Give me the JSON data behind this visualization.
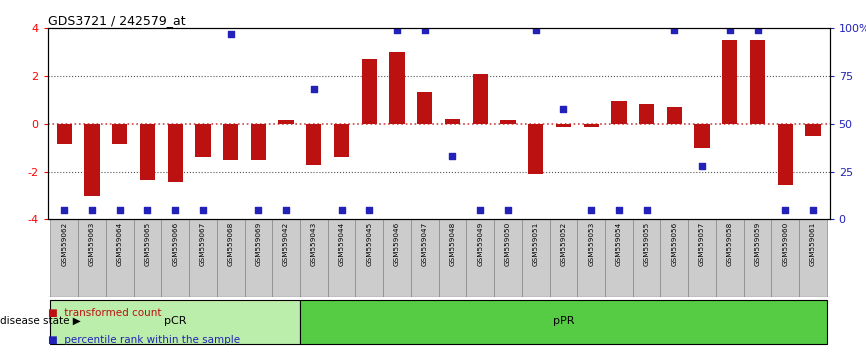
{
  "title": "GDS3721 / 242579_at",
  "samples": [
    "GSM559062",
    "GSM559063",
    "GSM559064",
    "GSM559065",
    "GSM559066",
    "GSM559067",
    "GSM559068",
    "GSM559069",
    "GSM559042",
    "GSM559043",
    "GSM559044",
    "GSM559045",
    "GSM559046",
    "GSM559047",
    "GSM559048",
    "GSM559049",
    "GSM559050",
    "GSM559051",
    "GSM559052",
    "GSM559053",
    "GSM559054",
    "GSM559055",
    "GSM559056",
    "GSM559057",
    "GSM559058",
    "GSM559059",
    "GSM559060",
    "GSM559061"
  ],
  "bar_values": [
    -0.85,
    -3.0,
    -0.85,
    -2.35,
    -2.45,
    -1.4,
    -1.5,
    -1.5,
    0.15,
    -1.7,
    -1.4,
    2.7,
    3.0,
    1.35,
    0.2,
    2.1,
    0.15,
    -2.1,
    -0.15,
    -0.15,
    0.95,
    0.85,
    0.7,
    -1.0,
    3.5,
    3.5,
    -2.55,
    -0.5
  ],
  "percentile_values": [
    5,
    5,
    5,
    5,
    5,
    5,
    97,
    5,
    5,
    68,
    5,
    5,
    99,
    99,
    33,
    5,
    5,
    99,
    58,
    5,
    5,
    5,
    99,
    28,
    99,
    99,
    5,
    5
  ],
  "pcr_count": 9,
  "pcr_label": "pCR",
  "ppr_label": "pPR",
  "disease_state_label": "disease state",
  "legend_bar": "transformed count",
  "legend_dot": "percentile rank within the sample",
  "bar_color": "#bb1111",
  "dot_color": "#2222bb",
  "zero_line_color": "#cc4444",
  "dotted_line_color": "#555555",
  "pcr_color": "#bbeeaa",
  "ppr_color": "#55cc44",
  "category_bg_color": "#cccccc",
  "ylim_left": [
    -4,
    4
  ],
  "ylim_right": [
    0,
    100
  ],
  "yticks_left": [
    -4,
    -2,
    0,
    2,
    4
  ],
  "yticks_right": [
    0,
    25,
    50,
    75,
    100
  ],
  "ytick_labels_right": [
    "0",
    "25",
    "50",
    "75",
    "100%"
  ]
}
